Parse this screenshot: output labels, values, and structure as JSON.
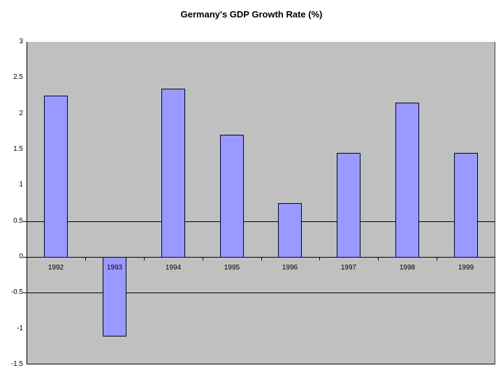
{
  "chart_data": {
    "type": "bar",
    "title": "Germany's GDP Growth Rate (%)",
    "categories": [
      "1992",
      "1993",
      "1994",
      "1995",
      "1996",
      "1997",
      "1998",
      "1999"
    ],
    "values": [
      2.25,
      -1.1,
      2.35,
      1.7,
      0.75,
      1.45,
      2.15,
      1.45
    ],
    "xlabel": "",
    "ylabel": "",
    "ylim": [
      -1.5,
      3
    ],
    "ytick_values": [
      3,
      2.5,
      2,
      1.5,
      1,
      0.5,
      0,
      -0.5,
      -1,
      -1.5
    ],
    "ytick_labels": [
      "3",
      "2.5",
      "2",
      "1.5",
      "1",
      "0.5",
      "0",
      "-0.5",
      "-1",
      "-1.5"
    ],
    "gridline_values": [
      0.5,
      0,
      -0.5
    ],
    "grid": "partial-horizontal",
    "legend": "none",
    "colors": {
      "bar_fill": "#9999ff",
      "bar_border": "#000025",
      "plot_background": "#c0c0c0",
      "page_background": "#ffffff",
      "axis_line": "#000000",
      "gridline": "#000000",
      "plot_right_border": "#404040",
      "label_text": "#000000"
    }
  }
}
